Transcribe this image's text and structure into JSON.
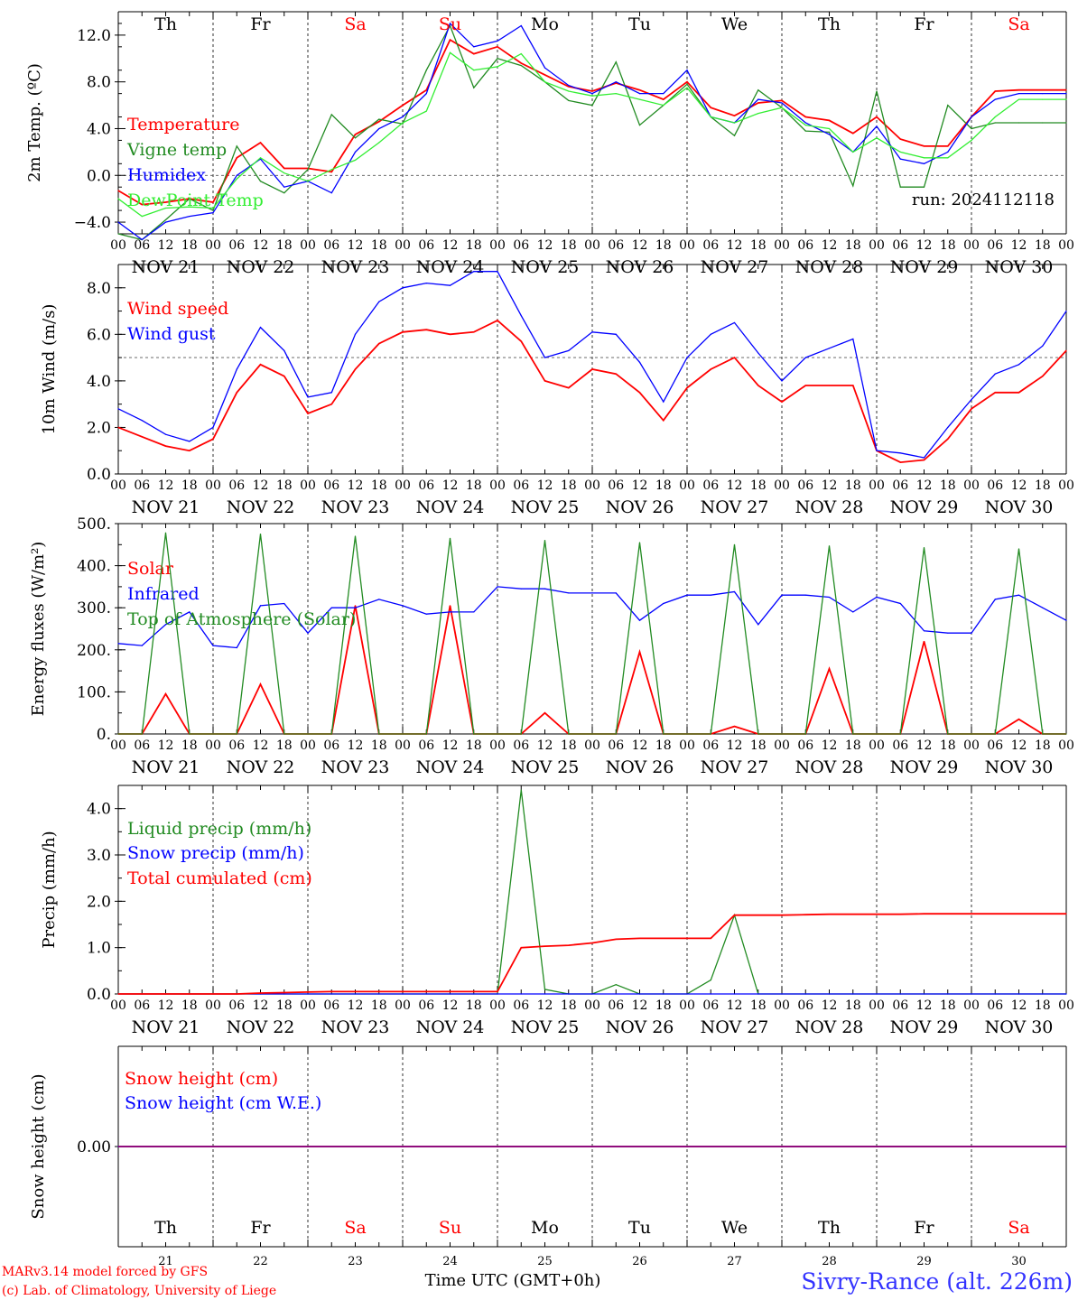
{
  "run_label": "run: 2024112118",
  "footer": {
    "credit_line1": "MARv3.14 model forced by GFS",
    "credit_line2": "(c) Lab. of Climatology, University of Liege",
    "xlabel": "Time UTC (GMT+0h)",
    "station": "Sivry-Rance (alt. 226m)"
  },
  "days": {
    "top": [
      "Th",
      "Fr",
      "Sa",
      "Su",
      "Mo",
      "Tu",
      "We",
      "Th",
      "Fr",
      "Sa"
    ],
    "weekend": [
      false,
      false,
      true,
      true,
      false,
      false,
      false,
      false,
      false,
      true
    ],
    "dates": [
      "NOV 21",
      "NOV 22",
      "NOV 23",
      "NOV 24",
      "NOV 25",
      "NOV 26",
      "NOV 27",
      "NOV 28",
      "NOV 29",
      "NOV 30"
    ],
    "day_numbers": [
      "21",
      "22",
      "23",
      "24",
      "25",
      "26",
      "27",
      "28",
      "29",
      "30"
    ],
    "hour_ticks": [
      "00",
      "06",
      "12",
      "18"
    ],
    "final_tick": "00"
  },
  "colors": {
    "red": "#ff0000",
    "green": "#228b22",
    "blue": "#0000ff",
    "lightgreen": "#33ee33",
    "purple": "#800080"
  },
  "chart_data": [
    {
      "type": "line",
      "ylabel": "2m Temp. (ºC)",
      "ylim": [
        -5.0,
        14.0
      ],
      "yticks": [
        -4.0,
        0.0,
        4.0,
        8.0,
        12.0
      ],
      "ytick_labels": [
        "−4.0",
        "0.0",
        "4.0",
        "8.0",
        "12.0"
      ],
      "hline": 0.0,
      "x_hours": [
        0,
        6,
        12,
        18,
        24,
        30,
        36,
        42,
        48,
        54,
        60,
        66,
        72,
        78,
        84,
        90,
        96,
        102,
        108,
        114,
        120,
        126,
        132,
        138,
        144,
        150,
        156,
        162,
        168,
        174,
        180,
        186,
        192,
        198,
        204,
        210,
        216,
        222,
        228,
        234,
        240
      ],
      "series": [
        {
          "name": "Temperature",
          "color": "red",
          "values": [
            -1.3,
            -2.5,
            -2.3,
            -2.0,
            -2.3,
            1.5,
            2.8,
            0.6,
            0.6,
            0.3,
            3.5,
            4.6,
            6.0,
            7.3,
            11.6,
            10.4,
            11.0,
            9.6,
            8.6,
            7.6,
            7.2,
            7.9,
            7.3,
            6.5,
            8.0,
            5.8,
            5.1,
            6.2,
            6.4,
            5.0,
            4.7,
            3.6,
            5.0,
            3.1,
            2.5,
            2.5,
            5.0,
            7.2,
            7.3,
            7.3,
            7.3
          ]
        },
        {
          "name": "Vigne temp",
          "color": "green",
          "values": [
            -5.0,
            -5.5,
            -3.8,
            -2.0,
            -3.0,
            2.5,
            -0.5,
            -1.5,
            0.5,
            5.2,
            3.2,
            4.8,
            4.4,
            9.0,
            12.8,
            7.5,
            10.0,
            9.4,
            8.0,
            6.4,
            6.0,
            9.7,
            4.3,
            6.0,
            7.8,
            5.0,
            3.4,
            7.3,
            5.8,
            3.8,
            3.7,
            -0.9,
            7.2,
            -1.0,
            -1.0,
            6.0,
            4.0,
            4.5,
            4.5,
            4.5,
            4.5
          ]
        },
        {
          "name": "Humidex",
          "color": "blue",
          "values": [
            -4.0,
            -5.5,
            -4.0,
            -3.5,
            -3.2,
            0.0,
            1.4,
            -1.0,
            -0.5,
            -1.5,
            2.0,
            4.0,
            5.0,
            7.0,
            13.0,
            11.0,
            11.5,
            12.8,
            9.2,
            7.7,
            7.0,
            8.0,
            7.0,
            7.0,
            9.0,
            5.0,
            4.5,
            6.5,
            6.2,
            4.5,
            3.5,
            2.0,
            4.2,
            1.4,
            1.0,
            2.0,
            5.0,
            6.5,
            7.0,
            7.0,
            7.0
          ]
        },
        {
          "name": "DewPoint Temp",
          "color": "lightgreen",
          "values": [
            -2.0,
            -3.5,
            -2.8,
            -2.7,
            -2.8,
            -0.3,
            1.5,
            0.2,
            -0.5,
            0.5,
            1.3,
            2.8,
            4.5,
            5.5,
            10.5,
            9.0,
            9.3,
            10.4,
            8.0,
            7.2,
            6.8,
            7.0,
            6.5,
            6.0,
            7.5,
            5.0,
            4.5,
            5.3,
            5.8,
            4.3,
            4.0,
            2.0,
            3.2,
            2.0,
            1.5,
            1.5,
            3.0,
            5.0,
            6.5,
            6.5,
            6.5
          ]
        }
      ]
    },
    {
      "type": "line",
      "ylabel": "10m Wind (m/s)",
      "ylim": [
        0.0,
        9.0
      ],
      "yticks": [
        0.0,
        2.0,
        4.0,
        6.0,
        8.0
      ],
      "ytick_labels": [
        "0.0",
        "2.0",
        "4.0",
        "6.0",
        "8.0"
      ],
      "hline": 5.0,
      "x_hours": [
        0,
        6,
        12,
        18,
        24,
        30,
        36,
        42,
        48,
        54,
        60,
        66,
        72,
        78,
        84,
        90,
        96,
        102,
        108,
        114,
        120,
        126,
        132,
        138,
        144,
        150,
        156,
        162,
        168,
        174,
        180,
        186,
        192,
        198,
        204,
        210,
        216,
        222,
        228,
        234,
        240
      ],
      "series": [
        {
          "name": "Wind speed",
          "color": "red",
          "values": [
            2.0,
            1.6,
            1.2,
            1.0,
            1.5,
            3.5,
            4.7,
            4.2,
            2.6,
            3.0,
            4.5,
            5.6,
            6.1,
            6.2,
            6.0,
            6.1,
            6.6,
            5.7,
            4.0,
            3.7,
            4.5,
            4.3,
            3.5,
            2.3,
            3.7,
            4.5,
            5.0,
            3.8,
            3.1,
            3.8,
            3.8,
            3.8,
            1.0,
            0.5,
            0.6,
            1.5,
            2.8,
            3.5,
            3.5,
            4.2,
            5.3
          ]
        },
        {
          "name": "Wind gust",
          "color": "blue",
          "values": [
            2.8,
            2.3,
            1.7,
            1.4,
            2.0,
            4.5,
            6.3,
            5.3,
            3.3,
            3.5,
            6.0,
            7.4,
            8.0,
            8.2,
            8.1,
            8.7,
            8.7,
            6.8,
            5.0,
            5.3,
            6.1,
            6.0,
            4.8,
            3.1,
            5.0,
            6.0,
            6.5,
            5.2,
            4.0,
            5.0,
            5.4,
            5.8,
            1.0,
            0.9,
            0.7,
            2.0,
            3.2,
            4.3,
            4.7,
            5.5,
            7.0
          ]
        }
      ]
    },
    {
      "type": "line",
      "ylabel": "Energy fluxes (W/m²)",
      "ylim": [
        0,
        500
      ],
      "yticks": [
        0,
        100,
        200,
        300,
        400,
        500
      ],
      "ytick_labels": [
        "0.",
        "100.",
        "200.",
        "300.",
        "400.",
        "500."
      ],
      "x_hours": [
        0,
        6,
        12,
        18,
        24,
        30,
        36,
        42,
        48,
        54,
        60,
        66,
        72,
        78,
        84,
        90,
        96,
        102,
        108,
        114,
        120,
        126,
        132,
        138,
        144,
        150,
        156,
        162,
        168,
        174,
        180,
        186,
        192,
        198,
        204,
        210,
        216,
        222,
        228,
        234,
        240
      ],
      "series": [
        {
          "name": "Solar",
          "color": "red",
          "values": [
            0,
            0,
            95,
            0,
            0,
            0,
            118,
            0,
            0,
            0,
            305,
            0,
            0,
            0,
            305,
            0,
            0,
            0,
            50,
            0,
            0,
            0,
            195,
            0,
            0,
            0,
            18,
            0,
            0,
            0,
            155,
            0,
            0,
            0,
            220,
            0,
            0,
            0,
            35,
            0,
            0
          ]
        },
        {
          "name": "Infrared",
          "color": "blue",
          "values": [
            215,
            210,
            260,
            290,
            210,
            205,
            305,
            310,
            240,
            300,
            300,
            320,
            305,
            285,
            290,
            290,
            350,
            345,
            345,
            335,
            335,
            335,
            270,
            310,
            330,
            330,
            338,
            260,
            330,
            330,
            325,
            290,
            325,
            310,
            245,
            240,
            240,
            320,
            330,
            300,
            270
          ]
        },
        {
          "name": "Top of Atmosphere (Solar)",
          "color": "green",
          "values": [
            0,
            0,
            478,
            0,
            0,
            0,
            475,
            0,
            0,
            0,
            470,
            0,
            0,
            0,
            465,
            0,
            0,
            0,
            460,
            0,
            0,
            0,
            455,
            0,
            0,
            0,
            450,
            0,
            0,
            0,
            447,
            0,
            0,
            0,
            443,
            0,
            0,
            0,
            440,
            0,
            0
          ]
        }
      ]
    },
    {
      "type": "line",
      "ylabel": "Precip (mm/h)",
      "ylim": [
        0.0,
        4.5
      ],
      "yticks": [
        0.0,
        1.0,
        2.0,
        3.0,
        4.0
      ],
      "ytick_labels": [
        "0.0",
        "1.0",
        "2.0",
        "3.0",
        "4.0"
      ],
      "x_hours": [
        0,
        6,
        12,
        18,
        24,
        30,
        36,
        42,
        48,
        54,
        60,
        66,
        72,
        78,
        84,
        90,
        96,
        102,
        108,
        114,
        120,
        126,
        132,
        138,
        144,
        150,
        156,
        162,
        168,
        174,
        180,
        186,
        192,
        198,
        204,
        210,
        216,
        222,
        228,
        234,
        240
      ],
      "series": [
        {
          "name": "Liquid precip (mm/h)",
          "color": "green",
          "values": [
            0,
            0,
            0,
            0,
            0,
            0,
            0,
            0,
            0,
            0,
            0,
            0,
            0,
            0,
            0,
            0,
            0,
            4.4,
            0.1,
            0,
            0,
            0.2,
            0,
            0,
            0,
            0.3,
            1.7,
            0,
            0,
            0,
            0,
            0,
            0,
            0,
            0,
            0,
            0,
            0,
            0,
            0,
            0
          ]
        },
        {
          "name": "Snow precip (mm/h)",
          "color": "blue",
          "values": [
            0,
            0,
            0,
            0,
            0,
            0,
            0,
            0,
            0,
            0,
            0,
            0,
            0,
            0,
            0,
            0,
            0,
            0,
            0,
            0,
            0,
            0,
            0,
            0,
            0,
            0,
            0,
            0,
            0,
            0,
            0,
            0,
            0,
            0,
            0,
            0,
            0,
            0,
            0,
            0,
            0
          ]
        },
        {
          "name": "Total cumulated (cm)",
          "color": "red",
          "values": [
            0,
            0,
            0,
            0,
            0,
            0,
            0.02,
            0.03,
            0.04,
            0.05,
            0.05,
            0.05,
            0.05,
            0.05,
            0.05,
            0.05,
            0.05,
            1.0,
            1.03,
            1.05,
            1.1,
            1.18,
            1.2,
            1.2,
            1.2,
            1.2,
            1.7,
            1.7,
            1.7,
            1.71,
            1.72,
            1.72,
            1.72,
            1.72,
            1.73,
            1.73,
            1.73,
            1.73,
            1.73,
            1.73,
            1.73
          ]
        }
      ]
    },
    {
      "type": "line",
      "ylabel": "Snow height (cm)",
      "ylim": [
        -1.0,
        1.0
      ],
      "yticks": [
        0.0
      ],
      "ytick_labels": [
        "0.00"
      ],
      "x_hours": [
        0,
        240
      ],
      "series": [
        {
          "name": "Snow height (cm)",
          "color": "red",
          "values": [
            0.0,
            0.0
          ]
        },
        {
          "name": "Snow height (cm W.E.)",
          "color": "blue",
          "values": [
            0.0,
            0.0
          ]
        }
      ]
    }
  ]
}
